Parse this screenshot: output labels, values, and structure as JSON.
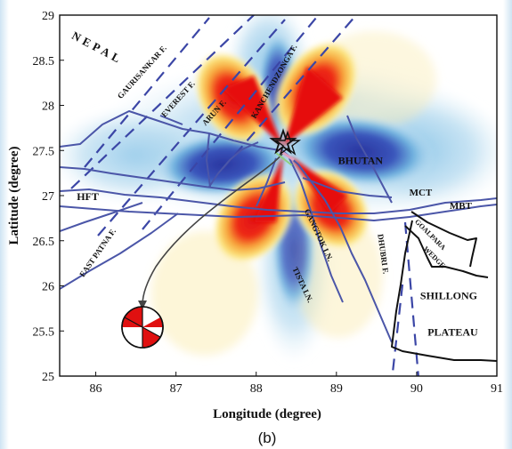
{
  "figure": {
    "caption": "(b)",
    "xlabel": "Longitude (degree)",
    "ylabel": "Latitude (degree)",
    "x_ticks": [
      "86",
      "87",
      "88",
      "89",
      "90",
      "91"
    ],
    "y_ticks": [
      "25",
      "25.5",
      "26",
      "26.5",
      "27",
      "27.5",
      "28",
      "28.5",
      "29"
    ]
  },
  "map": {
    "xlim": [
      85.55,
      91.0
    ],
    "ylim": [
      25.0,
      29.0
    ],
    "epicenter": {
      "lon": 88.3,
      "lat": 27.6
    },
    "beachball": {
      "lon": 86.6,
      "lat": 25.55
    },
    "labels": [
      {
        "text": "NEPAL",
        "lon": 86.0,
        "lat": 28.6,
        "rot": 28,
        "size": 13
      },
      {
        "text": "GAURISANKAR F.",
        "lon": 86.6,
        "lat": 28.35,
        "rot": -48,
        "size": 9
      },
      {
        "text": "EVEREST F.",
        "lon": 87.05,
        "lat": 28.05,
        "rot": -48,
        "size": 9
      },
      {
        "text": "ARUN F.",
        "lon": 87.5,
        "lat": 27.9,
        "rot": -48,
        "size": 9
      },
      {
        "text": "KANCHENDZONGA F.",
        "lon": 88.25,
        "lat": 28.25,
        "rot": -60,
        "size": 9
      },
      {
        "text": "BHUTAN",
        "lon": 89.3,
        "lat": 27.35,
        "rot": 0,
        "size": 12
      },
      {
        "text": "MCT",
        "lon": 90.05,
        "lat": 27.0,
        "rot": 0,
        "size": 11
      },
      {
        "text": "MBT",
        "lon": 90.55,
        "lat": 26.85,
        "rot": 0,
        "size": 11
      },
      {
        "text": "HFT",
        "lon": 85.9,
        "lat": 26.95,
        "rot": 0,
        "size": 12
      },
      {
        "text": "EAST PATNA F.",
        "lon": 86.05,
        "lat": 26.35,
        "rot": -55,
        "size": 9
      },
      {
        "text": "GANGTOK LN.",
        "lon": 88.75,
        "lat": 26.55,
        "rot": 65,
        "size": 9
      },
      {
        "text": "TISTA LN.",
        "lon": 88.55,
        "lat": 26.0,
        "rot": 65,
        "size": 9
      },
      {
        "text": "DHUBRI F.",
        "lon": 89.55,
        "lat": 26.35,
        "rot": 82,
        "size": 9
      },
      {
        "text": "GOALPARA",
        "lon": 90.15,
        "lat": 26.55,
        "rot": 45,
        "size": 8
      },
      {
        "text": "WEDGE",
        "lon": 90.2,
        "lat": 26.3,
        "rot": 45,
        "size": 8
      },
      {
        "text": "SHILLONG",
        "lon": 90.4,
        "lat": 25.85,
        "rot": 0,
        "size": 12
      },
      {
        "text": "PLATEAU",
        "lon": 90.45,
        "lat": 25.45,
        "rot": 0,
        "size": 12
      }
    ],
    "colors": {
      "red": "#dd1111",
      "yellow": "#f5d95a",
      "blue_dark": "#2d3ea8",
      "blue_light": "#8fc2e4",
      "fault_line": "#4b56a8",
      "boundary": "#111111"
    }
  }
}
